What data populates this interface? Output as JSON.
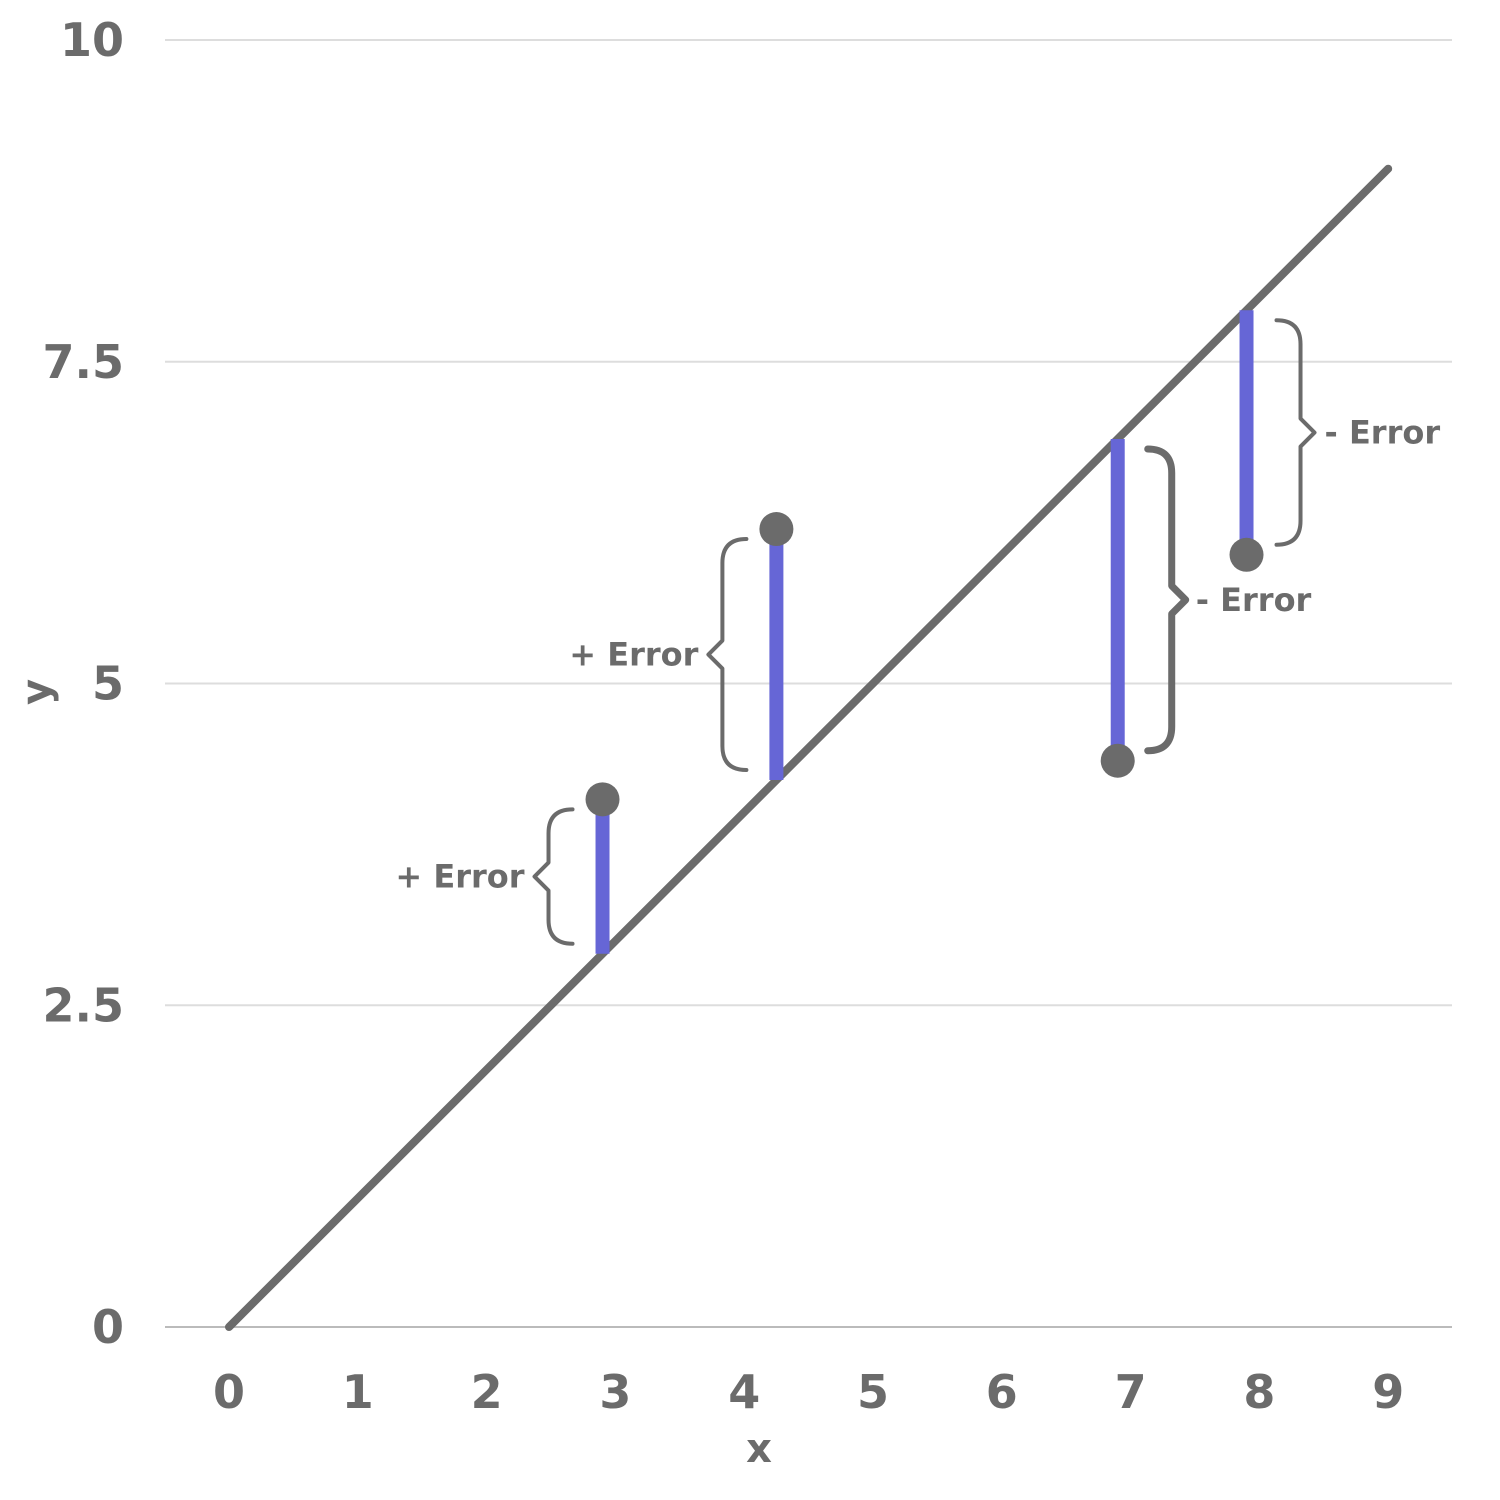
{
  "chart_data": {
    "type": "scatter",
    "title": "",
    "xlabel": "x",
    "ylabel": "y",
    "xlim": [
      0,
      9
    ],
    "ylim": [
      0,
      10
    ],
    "x_ticks": [
      "0",
      "1",
      "2",
      "3",
      "4",
      "5",
      "6",
      "7",
      "8",
      "9"
    ],
    "y_ticks": [
      {
        "value": 0,
        "label": "0"
      },
      {
        "value": 2.5,
        "label": "2.5"
      },
      {
        "value": 5,
        "label": "5"
      },
      {
        "value": 7.5,
        "label": "7.5"
      },
      {
        "value": 10,
        "label": "10"
      }
    ],
    "grid": "horizontal",
    "fit_line": {
      "x": [
        0,
        9
      ],
      "y": [
        0,
        9
      ]
    },
    "points": [
      {
        "x": 2.9,
        "y": 4.1,
        "annotation": "+ Error",
        "side": "left"
      },
      {
        "x": 4.25,
        "y": 6.2,
        "annotation": "+ Error",
        "side": "left"
      },
      {
        "x": 6.9,
        "y": 4.4,
        "annotation": "- Error",
        "side": "right"
      },
      {
        "x": 7.9,
        "y": 6.0,
        "annotation": "- Error",
        "side": "right"
      }
    ],
    "colors": {
      "line": "#6b6b6b",
      "point": "#6b6b6b",
      "residual": "#6666d6",
      "grid": "#dddddd",
      "text": "#6b6b6b"
    }
  }
}
